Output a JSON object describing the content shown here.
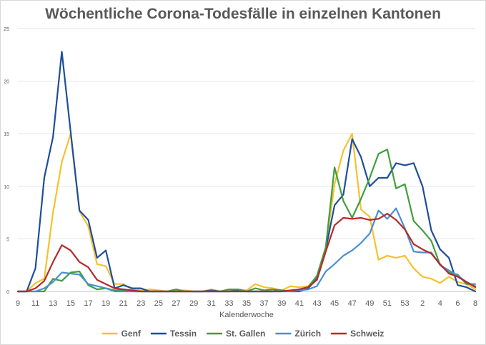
{
  "chart_data": {
    "type": "line",
    "title": "Wöchentliche Corona-Todesfälle in einzelnen Kantonen",
    "xlabel": "Kalenderwoche",
    "ylabel": "",
    "ylim": [
      0,
      25
    ],
    "yticks": [
      0,
      5,
      10,
      15,
      20,
      25
    ],
    "grid": "horizontal",
    "legend_position": "bottom",
    "x": [
      "9",
      "10",
      "11",
      "12",
      "13",
      "14",
      "15",
      "16",
      "17",
      "18",
      "19",
      "20",
      "21",
      "22",
      "23",
      "24",
      "25",
      "26",
      "27",
      "28",
      "29",
      "30",
      "31",
      "32",
      "33",
      "34",
      "35",
      "36",
      "37",
      "38",
      "39",
      "40",
      "41",
      "42",
      "43",
      "44",
      "45",
      "46",
      "47",
      "48",
      "49",
      "50",
      "51",
      "52",
      "53",
      "1",
      "2",
      "3",
      "4",
      "5",
      "6",
      "7",
      "8"
    ],
    "x_tick_labels": [
      "9",
      "11",
      "13",
      "15",
      "17",
      "19",
      "21",
      "23",
      "25",
      "27",
      "29",
      "31",
      "33",
      "35",
      "37",
      "39",
      "41",
      "43",
      "45",
      "47",
      "49",
      "51",
      "53",
      "2",
      "4",
      "6",
      "8"
    ],
    "series": [
      {
        "name": "Genf",
        "color": "#f5c12e",
        "values": [
          0,
          0,
          0.8,
          1.2,
          7.5,
          12.3,
          15,
          7.6,
          6.2,
          2.6,
          2.4,
          0.7,
          0.7,
          0.2,
          0.1,
          0.2,
          0.1,
          0,
          0.1,
          0.1,
          0,
          0,
          0.2,
          0,
          0.1,
          0.2,
          0.1,
          0.7,
          0.4,
          0.3,
          0.1,
          0.5,
          0.4,
          0.5,
          1.4,
          4.2,
          10.2,
          13.4,
          15,
          7.8,
          7.1,
          3,
          3.4,
          3.2,
          3.4,
          2.2,
          1.4,
          1.2,
          0.8,
          1.4,
          0.9,
          0.7,
          0.2
        ]
      },
      {
        "name": "Tessin",
        "color": "#1f4e9c",
        "values": [
          0,
          0,
          2.2,
          10.8,
          14.7,
          22.8,
          15.2,
          7.7,
          6.8,
          3.2,
          3.9,
          0.3,
          0.6,
          0.3,
          0.3,
          0,
          0,
          0,
          0,
          0,
          0,
          0,
          0.1,
          0,
          0,
          0.1,
          0,
          0,
          0,
          0,
          0.1,
          0,
          0,
          0.3,
          1.2,
          4,
          8.2,
          9.2,
          14.5,
          12.8,
          10,
          10.8,
          10.8,
          12.2,
          12,
          12.2,
          10,
          5.8,
          4,
          3.2,
          0.6,
          0.4,
          0
        ]
      },
      {
        "name": "St. Gallen",
        "color": "#3f9f3f",
        "values": [
          0,
          0,
          0,
          0,
          1.2,
          1,
          1.8,
          1.9,
          0.6,
          0.2,
          0.3,
          0.1,
          0.1,
          0,
          0,
          0,
          0,
          0,
          0.2,
          0,
          0,
          0,
          0,
          0,
          0.2,
          0.2,
          0,
          0.3,
          0.1,
          0.2,
          0.1,
          0,
          0.2,
          0.4,
          1.5,
          4.2,
          11.8,
          8.6,
          7,
          8.8,
          10.8,
          13.1,
          13.5,
          9.8,
          10.2,
          6.7,
          5.8,
          4.8,
          2.5,
          1.8,
          1.6,
          0.7,
          0.7
        ]
      },
      {
        "name": "Zürich",
        "color": "#4a8fd4",
        "values": [
          0,
          0,
          0,
          0.3,
          0.9,
          1.8,
          1.7,
          1.6,
          0.7,
          0.5,
          0.3,
          0,
          0,
          0,
          0,
          0,
          0,
          0,
          0,
          0,
          0,
          0,
          0,
          0,
          0,
          0,
          0,
          0,
          0,
          0,
          0,
          0,
          0.1,
          0.2,
          0.5,
          1.9,
          2.6,
          3.4,
          3.9,
          4.6,
          5.5,
          7.7,
          6.9,
          7.9,
          6,
          3.8,
          3.7,
          3.7,
          2.5,
          2,
          1.5,
          0.9,
          0.5
        ]
      },
      {
        "name": "Schweiz",
        "color": "#b7292a",
        "values": [
          0,
          0,
          0.3,
          1,
          2.8,
          4.4,
          3.9,
          2.8,
          2.3,
          1.1,
          0.7,
          0.3,
          0.2,
          0.1,
          0,
          0,
          0,
          0,
          0,
          0,
          0,
          0,
          0,
          0,
          0,
          0,
          0,
          0,
          0,
          0,
          0,
          0.1,
          0.2,
          0.4,
          1.1,
          3.8,
          6.3,
          7,
          6.9,
          7,
          6.8,
          6.9,
          7.4,
          6.8,
          5.9,
          4.5,
          4,
          3.6,
          2.6,
          1.7,
          1.4,
          0.9,
          0.4
        ]
      }
    ]
  }
}
